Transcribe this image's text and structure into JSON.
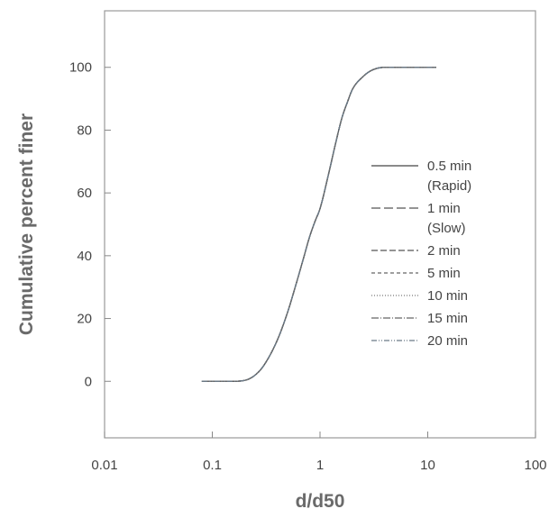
{
  "chart_data": {
    "type": "line",
    "xlabel": "d/d50",
    "ylabel": "Cumulative percent finer",
    "xscale": "log",
    "xlim": [
      0.01,
      100
    ],
    "ylim": [
      -18,
      118
    ],
    "x_ticks": [
      0.01,
      0.1,
      1,
      10,
      100
    ],
    "x_tick_labels": [
      "0.01",
      "0.1",
      "1",
      "10",
      "100"
    ],
    "y_ticks": [
      0,
      20,
      40,
      60,
      80,
      100
    ],
    "y_tick_labels": [
      "0",
      "20",
      "40",
      "60",
      "80",
      "100"
    ],
    "grid": false,
    "legend_position": "right",
    "x": [
      0.08,
      0.12,
      0.15,
      0.2,
      0.25,
      0.3,
      0.4,
      0.5,
      0.6,
      0.7,
      0.8,
      0.9,
      1.0,
      1.2,
      1.4,
      1.6,
      1.8,
      2.0,
      2.5,
      3.0,
      4.0,
      6.0,
      12.0
    ],
    "series": [
      {
        "name": "0.5 min (Rapid)",
        "label_lines": [
          "0.5 min",
          "(Rapid)"
        ],
        "dash": "",
        "color": "#444444",
        "values": [
          0,
          0,
          0,
          0.3,
          2,
          5,
          13,
          22,
          31,
          39,
          46,
          51,
          55,
          66,
          76,
          84,
          89,
          93,
          97,
          99,
          100,
          100,
          100
        ]
      },
      {
        "name": "1 min (Slow)",
        "label_lines": [
          "1 min",
          "(Slow)"
        ],
        "dash": "10,4",
        "color": "#555555",
        "values": [
          0,
          0,
          0,
          0.3,
          2,
          5,
          13,
          22,
          31,
          39,
          46,
          51,
          55,
          66,
          76,
          84,
          89,
          93,
          97,
          99,
          100,
          100,
          100
        ]
      },
      {
        "name": "2 min",
        "label_lines": [
          "2 min"
        ],
        "dash": "7,3",
        "color": "#555555",
        "values": [
          0,
          0,
          0,
          0.3,
          2,
          5,
          13,
          22,
          31,
          39,
          46,
          51,
          55,
          66,
          76,
          84,
          89,
          93,
          97,
          99,
          100,
          100,
          100
        ]
      },
      {
        "name": "5 min",
        "label_lines": [
          "5 min"
        ],
        "dash": "4,3",
        "color": "#666666",
        "values": [
          0,
          0,
          0,
          0.3,
          2,
          5,
          13,
          22,
          31,
          39,
          46,
          51,
          55,
          66,
          76,
          84,
          89,
          93,
          97,
          99,
          100,
          100,
          100
        ]
      },
      {
        "name": "10 min",
        "label_lines": [
          "10 min"
        ],
        "dash": "1,2",
        "color": "#777777",
        "values": [
          0,
          0,
          0,
          0.3,
          2,
          5,
          13,
          22,
          31,
          39,
          46,
          51,
          55,
          66,
          76,
          84,
          89,
          93,
          97,
          99,
          100,
          100,
          100
        ]
      },
      {
        "name": "15 min",
        "label_lines": [
          "15 min"
        ],
        "dash": "8,2,1,2",
        "color": "#666666",
        "values": [
          0,
          0,
          0,
          0.3,
          2,
          5,
          13,
          22,
          31,
          39,
          46,
          51,
          55,
          66,
          76,
          84,
          89,
          93,
          97,
          99,
          100,
          100,
          100
        ]
      },
      {
        "name": "20 min",
        "label_lines": [
          "20 min"
        ],
        "dash": "6,2,1,2,1,2",
        "color": "#6a7a88",
        "values": [
          0,
          0,
          0,
          0.3,
          2,
          5,
          13,
          22,
          31,
          39,
          46,
          51,
          55,
          66,
          76,
          84,
          89,
          93,
          97,
          99,
          100,
          100,
          100
        ]
      }
    ]
  }
}
